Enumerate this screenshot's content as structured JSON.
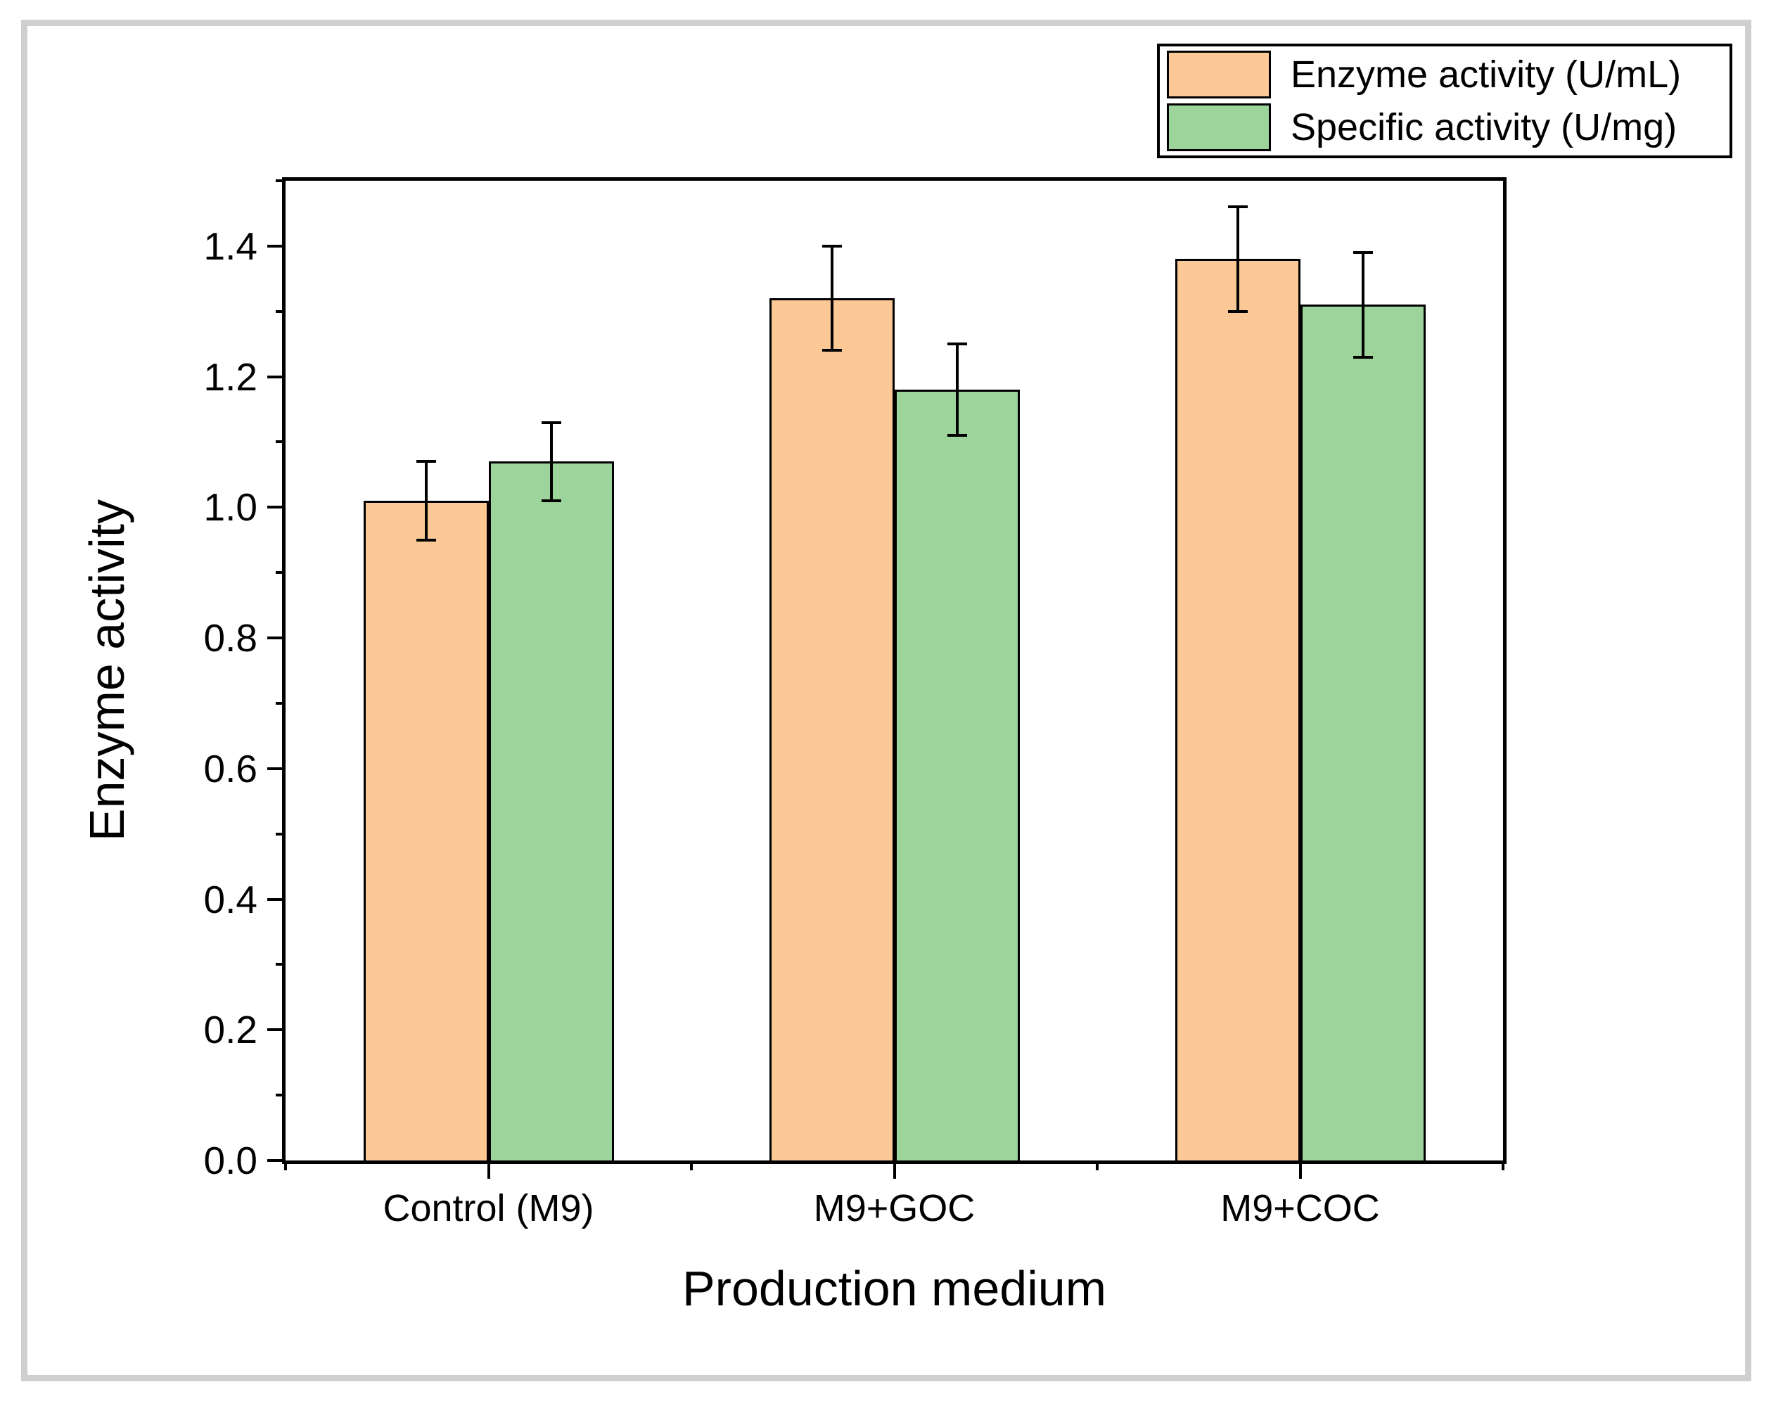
{
  "chart_data": {
    "type": "bar",
    "title": "",
    "categories": [
      "Control (M9)",
      "M9+GOC",
      "M9+COC"
    ],
    "series": [
      {
        "name": "Enzyme activity (U/mL)",
        "color": "#FBC896",
        "values": [
          1.01,
          1.32,
          1.38
        ],
        "errors": [
          0.06,
          0.08,
          0.08
        ]
      },
      {
        "name": "Specific activity (U/mg)",
        "color": "#9DD49C",
        "values": [
          1.07,
          1.18,
          1.31
        ],
        "errors": [
          0.06,
          0.07,
          0.08
        ]
      }
    ],
    "xlabel": "Production medium",
    "ylabel": "Enzyme activity",
    "ylim": [
      0,
      1.5
    ],
    "y_major_tick_step": 0.2,
    "y_minor_tick_step": 0.1,
    "y_tick_labels": [
      "0.0",
      "0.2",
      "0.4",
      "0.6",
      "0.8",
      "1.0",
      "1.2",
      "1.4"
    ],
    "grid": "off",
    "legend_position": "top-right",
    "bar_edge_color": "#000000",
    "error_bar_color": "#000000",
    "axis_color": "#000000",
    "outer_border_color": "#d0cfcf"
  }
}
